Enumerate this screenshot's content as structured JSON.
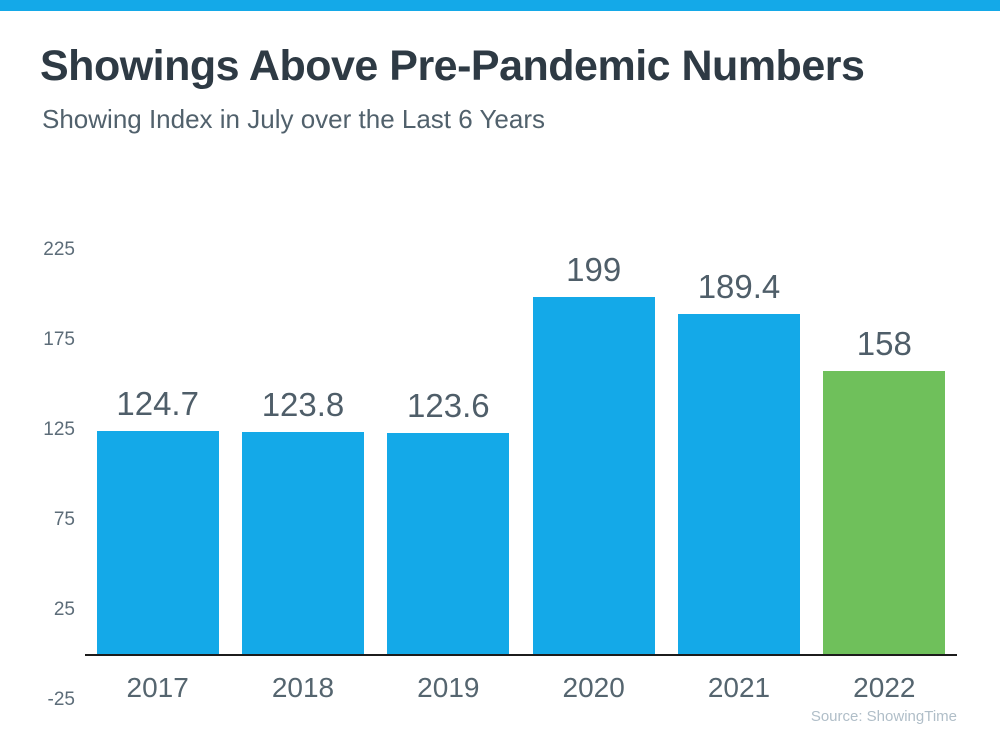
{
  "page": {
    "background": "#ffffff",
    "accent_bar_color": "#14a9e8"
  },
  "header": {
    "title": "Showings Above Pre-Pandemic Numbers",
    "subtitle": "Showing Index in July over the Last 6 Years"
  },
  "chart_data": {
    "type": "bar",
    "title": "Showings Above Pre-Pandemic Numbers",
    "subtitle": "Showing Index in July over the Last 6 Years",
    "categories": [
      "2017",
      "2018",
      "2019",
      "2020",
      "2021",
      "2022"
    ],
    "values": [
      124.7,
      123.8,
      123.6,
      199,
      189.4,
      158
    ],
    "data_labels": [
      "124.7",
      "123.8",
      "123.6",
      "199",
      "189.4",
      "158"
    ],
    "bar_colors": [
      "#14a9e8",
      "#14a9e8",
      "#14a9e8",
      "#14a9e8",
      "#14a9e8",
      "#6fc05b"
    ],
    "highlight_color": "#6fc05b",
    "default_bar_color": "#14a9e8",
    "yticks": [
      225,
      175,
      125,
      75,
      25,
      -25
    ],
    "ylim": [
      -25,
      225
    ],
    "baseline_value": 0,
    "grid": false,
    "legend": "none",
    "xlabel": "",
    "ylabel": "",
    "label_color": "#4f5e69",
    "tick_color": "#5c6c78",
    "axis_line_color": "#1c1c1c"
  },
  "footer": {
    "source": "Source: ShowingTime"
  }
}
